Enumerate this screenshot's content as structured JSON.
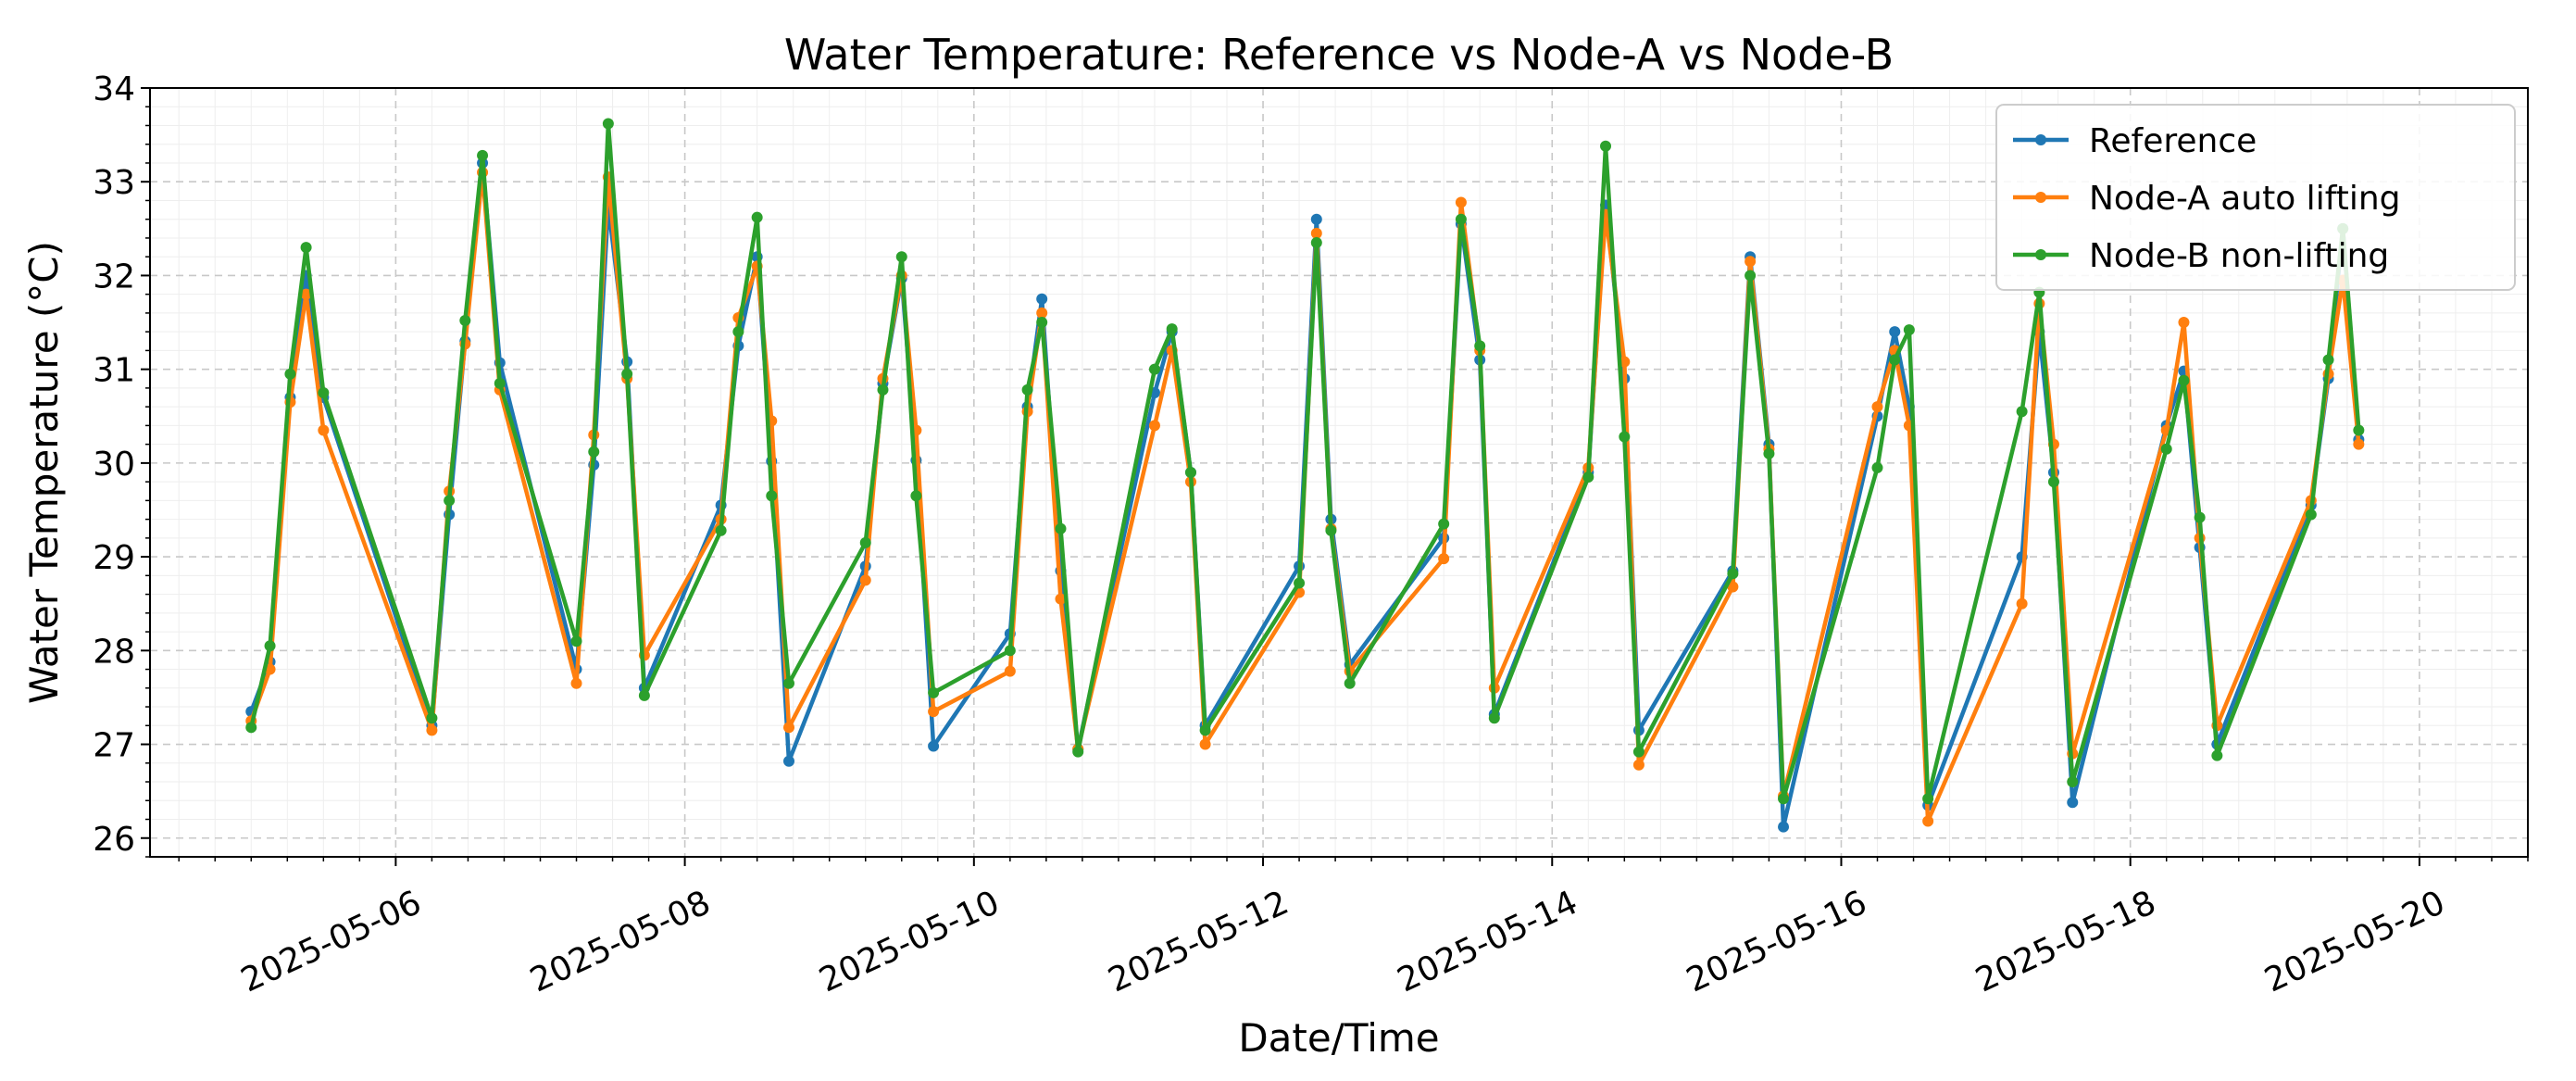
{
  "chart_data": {
    "type": "line",
    "title": "Water Temperature: Reference vs Node-A vs Node-B",
    "xlabel": "Date/Time",
    "ylabel": "Water Temperature (°C)",
    "ylim": [
      25.8,
      34.0
    ],
    "xlim": [
      -0.7,
      15.75
    ],
    "x_epoch_label": "2025-05-05",
    "yticks": [
      26,
      27,
      28,
      29,
      30,
      31,
      32,
      33,
      34
    ],
    "xticks": [
      {
        "day": 1,
        "label": "2025-05-06"
      },
      {
        "day": 3,
        "label": "2025-05-08"
      },
      {
        "day": 5,
        "label": "2025-05-10"
      },
      {
        "day": 7,
        "label": "2025-05-12"
      },
      {
        "day": 9,
        "label": "2025-05-14"
      },
      {
        "day": 11,
        "label": "2025-05-16"
      },
      {
        "day": 13,
        "label": "2025-05-18"
      },
      {
        "day": 15,
        "label": "2025-05-20"
      }
    ],
    "grid": true,
    "legend_position": "top-right",
    "series": [
      {
        "name": "Reference",
        "color": "#1f77b4",
        "x": [
          0.0,
          0.13,
          0.27,
          0.38,
          0.5,
          1.25,
          1.37,
          1.48,
          1.6,
          1.72,
          2.25,
          2.37,
          2.47,
          2.6,
          2.72,
          3.25,
          3.37,
          3.5,
          3.6,
          3.72,
          4.25,
          4.37,
          4.5,
          4.6,
          4.72,
          5.25,
          5.37,
          5.47,
          5.6,
          5.72,
          6.25,
          6.37,
          6.5,
          6.6,
          7.25,
          7.37,
          7.47,
          7.6,
          8.25,
          8.37,
          8.5,
          8.6,
          9.25,
          9.37,
          9.5,
          9.6,
          10.25,
          10.37,
          10.5,
          10.6,
          11.25,
          11.37,
          11.47,
          11.6,
          12.25,
          12.37,
          12.47,
          12.6,
          13.25,
          13.37,
          13.48,
          13.6,
          14.25,
          14.37,
          14.47,
          14.58
        ],
        "y": [
          27.35,
          27.88,
          30.7,
          32.0,
          30.7,
          27.2,
          29.45,
          31.3,
          33.2,
          31.07,
          27.8,
          29.98,
          32.75,
          31.08,
          27.6,
          29.55,
          31.25,
          32.2,
          30.02,
          26.82,
          28.9,
          30.85,
          31.97,
          30.03,
          26.98,
          28.18,
          30.6,
          31.75,
          28.85,
          26.95,
          30.75,
          31.4,
          29.9,
          27.2,
          28.9,
          32.6,
          29.4,
          27.85,
          29.2,
          32.55,
          31.1,
          27.32,
          29.9,
          32.75,
          30.9,
          27.15,
          28.85,
          32.2,
          30.2,
          26.12,
          30.5,
          31.4,
          30.6,
          26.35,
          29.0,
          31.4,
          29.9,
          26.38,
          30.4,
          30.98,
          29.1,
          27.0,
          29.55,
          30.9,
          32.5,
          30.25
        ]
      },
      {
        "name": "Node-A auto lifting",
        "color": "#ff7f0e",
        "x": [
          0.0,
          0.13,
          0.27,
          0.38,
          0.5,
          1.25,
          1.37,
          1.48,
          1.6,
          1.72,
          2.25,
          2.37,
          2.47,
          2.6,
          2.72,
          3.25,
          3.37,
          3.5,
          3.6,
          3.72,
          4.25,
          4.37,
          4.5,
          4.6,
          4.72,
          5.25,
          5.37,
          5.47,
          5.6,
          5.72,
          6.25,
          6.37,
          6.5,
          6.6,
          7.25,
          7.37,
          7.47,
          7.6,
          8.25,
          8.37,
          8.5,
          8.6,
          9.25,
          9.37,
          9.5,
          9.6,
          10.25,
          10.37,
          10.5,
          10.6,
          11.25,
          11.37,
          11.47,
          11.6,
          12.25,
          12.37,
          12.47,
          12.6,
          13.25,
          13.37,
          13.48,
          13.6,
          14.25,
          14.37,
          14.47,
          14.58
        ],
        "y": [
          27.25,
          27.8,
          30.65,
          31.8,
          30.35,
          27.15,
          29.7,
          31.27,
          33.1,
          30.78,
          27.65,
          30.3,
          33.05,
          30.9,
          27.95,
          29.4,
          31.55,
          32.1,
          30.45,
          27.18,
          28.75,
          30.9,
          32.0,
          30.35,
          27.35,
          27.78,
          30.55,
          31.6,
          28.55,
          26.95,
          30.4,
          31.2,
          29.8,
          27.0,
          28.62,
          32.45,
          29.3,
          27.78,
          28.98,
          32.78,
          31.2,
          27.6,
          29.95,
          32.65,
          31.08,
          26.78,
          28.68,
          32.15,
          30.15,
          26.45,
          30.6,
          31.2,
          30.4,
          26.18,
          28.5,
          31.7,
          30.2,
          26.9,
          30.35,
          31.5,
          29.2,
          27.2,
          29.6,
          30.95,
          31.95,
          30.2
        ]
      },
      {
        "name": "Node-B non-lifting",
        "color": "#2ca02c",
        "x": [
          0.0,
          0.13,
          0.27,
          0.38,
          0.5,
          1.25,
          1.37,
          1.48,
          1.6,
          1.72,
          2.25,
          2.37,
          2.47,
          2.6,
          2.72,
          3.25,
          3.37,
          3.5,
          3.6,
          3.72,
          4.25,
          4.37,
          4.5,
          4.6,
          4.72,
          5.25,
          5.37,
          5.47,
          5.6,
          5.72,
          6.25,
          6.37,
          6.5,
          6.6,
          7.25,
          7.37,
          7.47,
          7.6,
          8.25,
          8.37,
          8.5,
          8.6,
          9.25,
          9.37,
          9.5,
          9.6,
          10.25,
          10.37,
          10.5,
          10.6,
          11.25,
          11.37,
          11.47,
          11.6,
          12.25,
          12.37,
          12.47,
          12.6,
          13.25,
          13.37,
          13.48,
          13.6,
          14.25,
          14.37,
          14.47,
          14.58
        ],
        "y": [
          27.18,
          28.05,
          30.95,
          32.3,
          30.75,
          27.28,
          29.6,
          31.52,
          33.28,
          30.85,
          28.1,
          30.12,
          33.62,
          30.95,
          27.52,
          29.28,
          31.4,
          32.62,
          29.65,
          27.65,
          29.15,
          30.78,
          32.2,
          29.65,
          27.55,
          28.0,
          30.78,
          31.5,
          29.3,
          26.92,
          31.0,
          31.43,
          29.9,
          27.15,
          28.72,
          32.35,
          29.28,
          27.65,
          29.35,
          32.6,
          31.25,
          27.28,
          29.85,
          33.38,
          30.28,
          26.92,
          28.82,
          32.0,
          30.1,
          26.42,
          29.95,
          31.1,
          31.42,
          26.42,
          30.55,
          31.82,
          29.8,
          26.6,
          30.15,
          30.88,
          29.42,
          26.88,
          29.45,
          31.1,
          32.5,
          30.35
        ]
      }
    ]
  }
}
